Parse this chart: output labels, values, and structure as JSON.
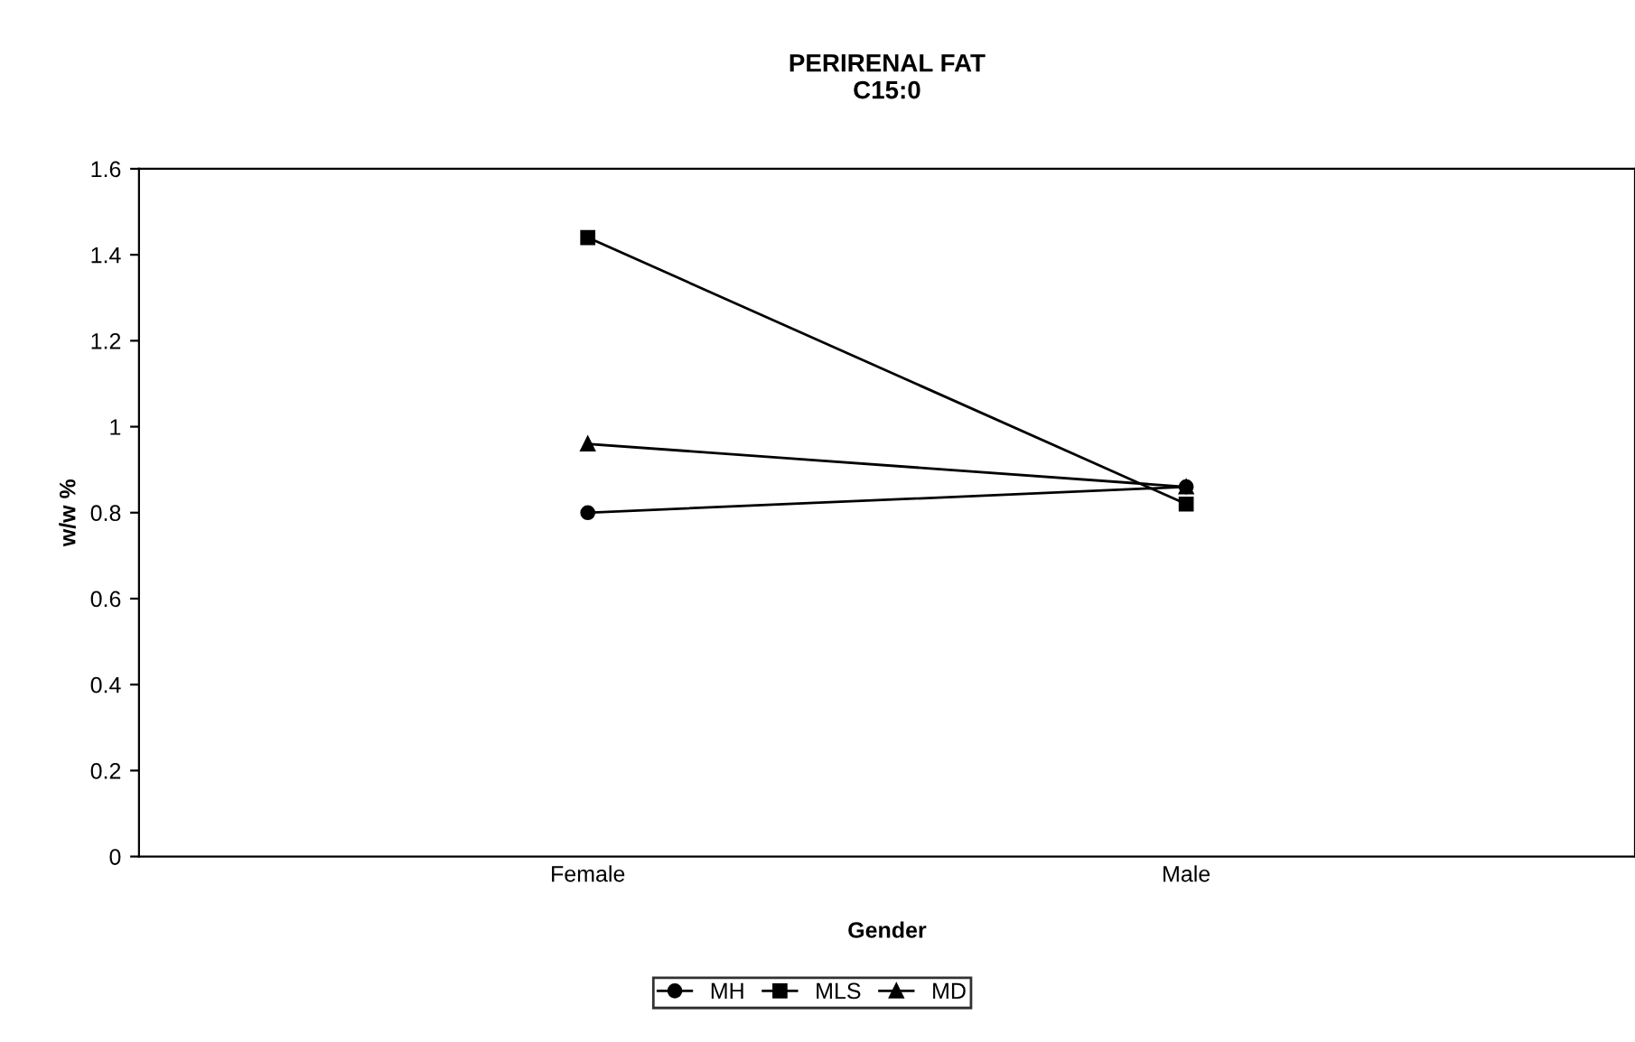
{
  "chart_data": {
    "type": "line",
    "title": "PERIRENAL FAT\nC15:0",
    "xlabel": "Gender",
    "ylabel": "w/w %",
    "categories": [
      "Female",
      "Male"
    ],
    "series": [
      {
        "name": "MH",
        "color": "#000000",
        "marker": "circle",
        "values": [
          0.8,
          0.86
        ]
      },
      {
        "name": "MLS",
        "color": "#000000",
        "marker": "square",
        "values": [
          1.44,
          0.82
        ]
      },
      {
        "name": "MD",
        "color": "#000000",
        "marker": "triangle",
        "values": [
          0.96,
          0.86
        ]
      }
    ],
    "ylim": [
      0,
      1.6
    ],
    "yticks": [
      0,
      0.2,
      0.4,
      0.6,
      0.8,
      1,
      1.2,
      1.4,
      1.6
    ],
    "grid": false,
    "legend": "bottom"
  }
}
